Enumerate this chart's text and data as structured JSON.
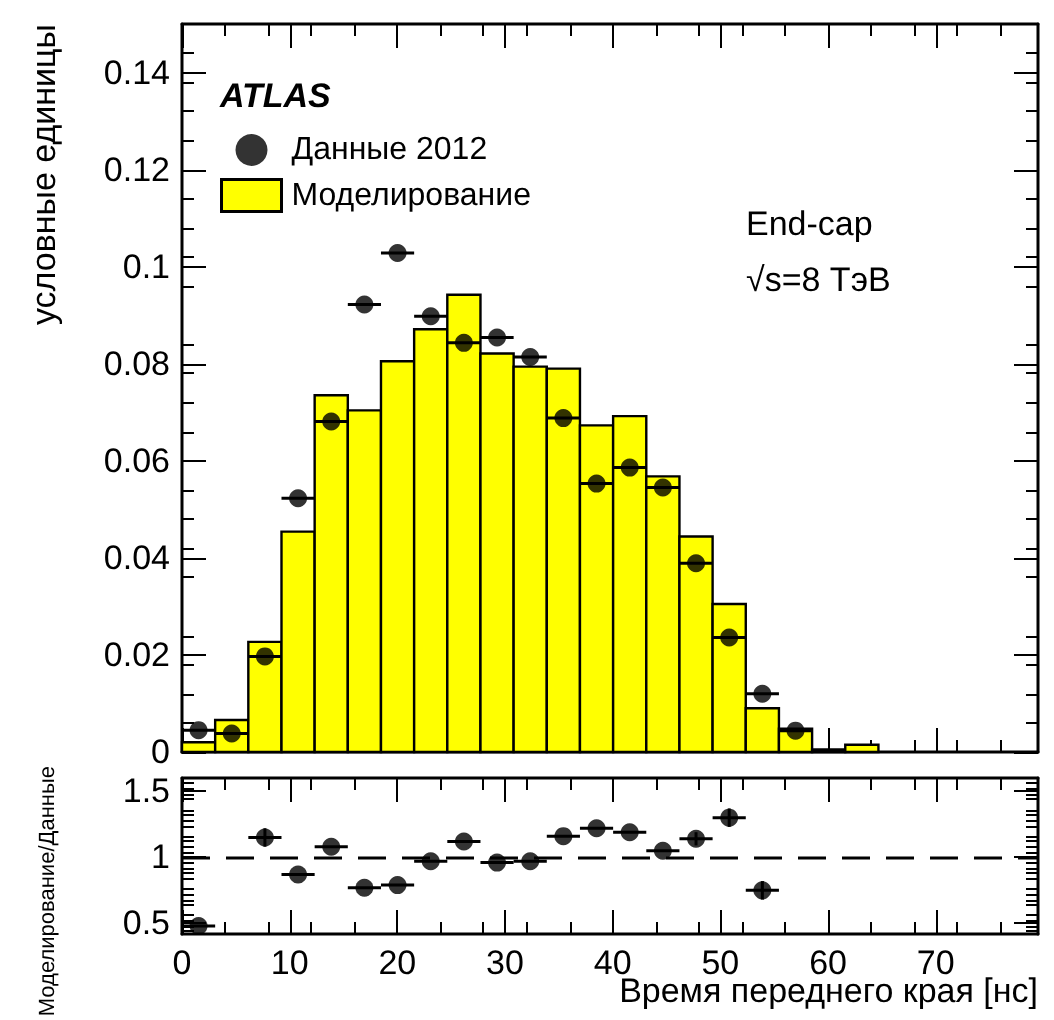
{
  "chart_data": [
    {
      "type": "histogram",
      "ylabel": "условные единицы",
      "legend": "top left",
      "marker": "circle",
      "tick_labels": "y",
      "annotations": [
        "ATLAS",
        "End-cap",
        "√s=8 ТэВ"
      ],
      "bins": [
        0,
        3.08,
        6.16,
        9.24,
        12.32,
        15.4,
        18.48,
        21.56,
        24.64,
        27.72,
        30.8,
        33.88,
        36.96,
        40.04,
        43.12,
        46.2,
        49.28,
        52.36,
        55.44,
        58.52,
        61.6,
        64.68
      ],
      "series": [
        {
          "type": "histogram",
          "name": "Моделирование",
          "color": "#ffff00",
          "values": [
            0.002,
            0.0066,
            0.0227,
            0.0454,
            0.0735,
            0.0704,
            0.0805,
            0.0871,
            0.0942,
            0.0821,
            0.0794,
            0.079,
            0.0673,
            0.0692,
            0.0568,
            0.0444,
            0.0305,
            0.009,
            0.0048,
            0.0005,
            0.0015
          ]
        },
        {
          "type": "scatter",
          "name": "Данные 2012",
          "color": "#000000",
          "x": [
            1.54,
            4.62,
            7.7,
            10.78,
            13.86,
            16.94,
            20.02,
            23.1,
            26.18,
            29.26,
            32.34,
            35.42,
            38.5,
            41.58,
            44.66,
            47.74,
            50.82,
            53.9,
            56.98
          ],
          "values": [
            0.0045,
            0.0038,
            0.0197,
            0.0523,
            0.0681,
            0.0922,
            0.1028,
            0.0898,
            0.0843,
            0.0854,
            0.0814,
            0.0688,
            0.0553,
            0.0586,
            0.0545,
            0.0389,
            0.0236,
            0.012,
            0.0044
          ],
          "xerrors": [
            1.54,
            1.54,
            1.54,
            1.54,
            1.54,
            1.54,
            1.54,
            1.54,
            1.54,
            1.54,
            1.54,
            1.54,
            1.54,
            1.54,
            1.54,
            1.54,
            1.54,
            1.54,
            1.54
          ]
        }
      ],
      "xlim": [
        0,
        79.5
      ],
      "xticks": [
        0,
        10,
        20,
        30,
        40,
        50,
        60,
        70
      ],
      "ylim": [
        0,
        0.15
      ],
      "yticks": [
        0,
        0.02,
        0.04,
        0.06,
        0.08,
        0.1,
        0.12,
        0.14
      ]
    },
    {
      "type": "scatter",
      "ylabel": "Моделирование/Данные",
      "xlabel": "Время переднего края [нс]",
      "marker": "circle",
      "color": "#000000",
      "x": [
        1.54,
        7.7,
        10.78,
        13.86,
        16.94,
        20.02,
        23.1,
        26.18,
        29.26,
        32.34,
        35.42,
        38.5,
        41.58,
        44.66,
        47.74,
        50.82,
        53.9
      ],
      "values": [
        0.48,
        1.15,
        0.87,
        1.08,
        0.77,
        0.79,
        0.97,
        1.12,
        0.96,
        0.97,
        1.16,
        1.22,
        1.19,
        1.05,
        1.14,
        1.3,
        0.75
      ],
      "errors": [
        null,
        0.07,
        null,
        null,
        null,
        null,
        null,
        null,
        null,
        null,
        null,
        null,
        null,
        null,
        0.05,
        0.07,
        0.07
      ],
      "xerrors": [
        1.54,
        1.54,
        1.54,
        1.54,
        1.54,
        1.54,
        1.54,
        1.54,
        1.54,
        1.54,
        1.54,
        1.54,
        1.54,
        1.54,
        1.54,
        1.54,
        1.54
      ],
      "ref_lines": [
        {
          "axis": "y",
          "value": 1,
          "line_style": "dashed",
          "color": "#000000"
        }
      ],
      "xlim": [
        0,
        79.5
      ],
      "xticks": [
        0,
        10,
        20,
        30,
        40,
        50,
        60,
        70
      ],
      "ylim": [
        0.42,
        1.6
      ],
      "yticks": [
        0.5,
        1,
        1.5
      ]
    }
  ]
}
